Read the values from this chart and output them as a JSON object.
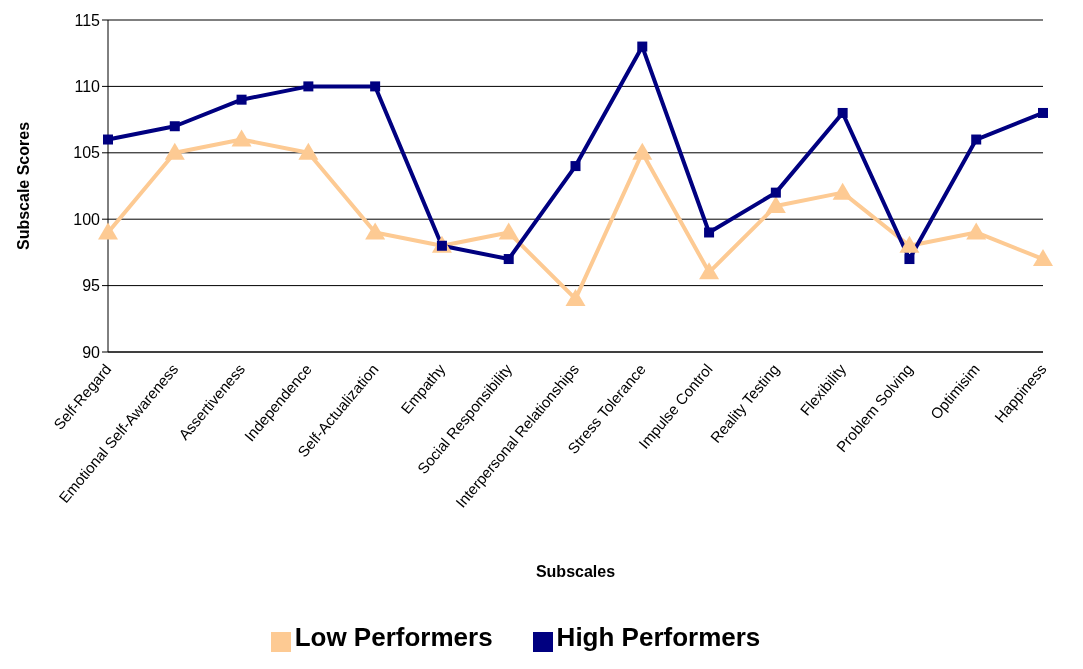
{
  "chart_data": {
    "type": "line",
    "xlabel": "Subscales",
    "ylabel": "Subscale Scores",
    "categories": [
      "Self-Regard",
      "Emotional Self-Awareness",
      "Assertiveness",
      "Independence",
      "Self-Actualization",
      "Empathy",
      "Social Responsibility",
      "Interpersonal Relationships",
      "Stress Tolerance",
      "Impulse Control",
      "Reality Testing",
      "Flexibility",
      "Problem Solving",
      "Optimisim",
      "Happiness"
    ],
    "series": [
      {
        "name": "Low Performers",
        "color": "#fdca93",
        "marker": "triangle",
        "values": [
          99,
          105,
          106,
          105,
          99,
          98,
          99,
          94,
          105,
          96,
          101,
          102,
          98,
          99,
          97
        ]
      },
      {
        "name": "High Performers",
        "color": "#000080",
        "marker": "square",
        "values": [
          106,
          107,
          109,
          110,
          110,
          98,
          97,
          104,
          113,
          99,
          102,
          108,
          97,
          106,
          108
        ]
      }
    ],
    "ylim": [
      90,
      115
    ],
    "yticks": [
      90,
      95,
      100,
      105,
      110,
      115
    ],
    "grid": "y",
    "legend": "bottom",
    "line_style": "solid"
  }
}
